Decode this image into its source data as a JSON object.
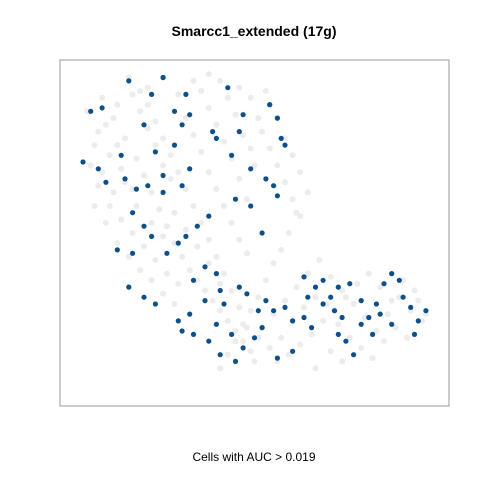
{
  "chart_data": {
    "type": "scatter",
    "title": "Smarcc1_extended (17g)",
    "xlabel": "Cells with AUC > 0.019",
    "ylabel": "",
    "xlim": [
      0,
      100
    ],
    "ylim": [
      0,
      100
    ],
    "axes_ticks": false,
    "grid": false,
    "legend": "none",
    "colors": {
      "highlight": "#0d4f8b",
      "background_points": "#ececec",
      "frame": "#9a9a9a"
    },
    "series": [
      {
        "role": "all-cells",
        "values": [
          [
            6,
            86
          ],
          [
            9,
            80
          ],
          [
            12,
            73
          ],
          [
            15,
            69
          ],
          [
            18,
            63
          ],
          [
            20,
            86
          ],
          [
            22,
            81
          ],
          [
            24,
            76
          ],
          [
            26,
            70
          ],
          [
            28,
            66
          ],
          [
            30,
            91
          ],
          [
            32,
            84
          ],
          [
            34,
            79
          ],
          [
            36,
            74
          ],
          [
            38,
            68
          ],
          [
            40,
            63
          ],
          [
            42,
            58
          ],
          [
            44,
            53
          ],
          [
            46,
            48
          ],
          [
            48,
            44
          ],
          [
            10,
            90
          ],
          [
            13,
            84
          ],
          [
            16,
            78
          ],
          [
            19,
            72
          ],
          [
            21,
            67
          ],
          [
            23,
            62
          ],
          [
            25,
            57
          ],
          [
            27,
            52
          ],
          [
            29,
            47
          ],
          [
            31,
            43
          ],
          [
            33,
            39
          ],
          [
            35,
            36
          ],
          [
            37,
            33
          ],
          [
            39,
            30
          ],
          [
            41,
            27
          ],
          [
            43,
            24
          ],
          [
            45,
            21
          ],
          [
            47,
            18
          ],
          [
            49,
            15
          ],
          [
            50,
            12
          ],
          [
            52,
            80
          ],
          [
            54,
            75
          ],
          [
            56,
            70
          ],
          [
            58,
            65
          ],
          [
            60,
            60
          ],
          [
            62,
            55
          ],
          [
            50,
            70
          ],
          [
            48,
            60
          ],
          [
            46,
            66
          ],
          [
            44,
            72
          ],
          [
            42,
            77
          ],
          [
            40,
            82
          ],
          [
            38,
            87
          ],
          [
            36,
            92
          ],
          [
            34,
            95
          ],
          [
            26,
            96
          ],
          [
            22,
            93
          ],
          [
            18,
            91
          ],
          [
            14,
            88
          ],
          [
            11,
            82
          ],
          [
            8,
            76
          ],
          [
            7,
            70
          ],
          [
            9,
            64
          ],
          [
            12,
            58
          ],
          [
            15,
            54
          ],
          [
            18,
            50
          ],
          [
            21,
            46
          ],
          [
            24,
            42
          ],
          [
            27,
            38
          ],
          [
            30,
            35
          ],
          [
            58,
            78
          ],
          [
            56,
            84
          ],
          [
            54,
            88
          ],
          [
            60,
            73
          ],
          [
            62,
            68
          ],
          [
            64,
            62
          ],
          [
            61,
            56
          ],
          [
            59,
            50
          ],
          [
            57,
            45
          ],
          [
            55,
            41
          ],
          [
            53,
            36
          ],
          [
            51,
            31
          ],
          [
            49,
            27
          ],
          [
            47,
            23
          ],
          [
            45,
            18
          ],
          [
            43,
            14
          ],
          [
            41,
            10
          ],
          [
            52,
            22
          ],
          [
            55,
            26
          ],
          [
            58,
            30
          ],
          [
            61,
            34
          ],
          [
            64,
            38
          ],
          [
            67,
            42
          ],
          [
            70,
            37
          ],
          [
            73,
            33
          ],
          [
            76,
            29
          ],
          [
            79,
            25
          ],
          [
            82,
            21
          ],
          [
            85,
            26
          ],
          [
            88,
            31
          ],
          [
            91,
            27
          ],
          [
            94,
            24
          ],
          [
            92,
            33
          ],
          [
            89,
            36
          ],
          [
            86,
            30
          ],
          [
            83,
            34
          ],
          [
            80,
            38
          ],
          [
            77,
            35
          ],
          [
            74,
            31
          ],
          [
            71,
            27
          ],
          [
            68,
            24
          ],
          [
            65,
            20
          ],
          [
            62,
            17
          ],
          [
            59,
            14
          ],
          [
            56,
            12
          ],
          [
            63,
            28
          ],
          [
            66,
            31
          ],
          [
            69,
            29
          ],
          [
            72,
            23
          ],
          [
            75,
            19
          ],
          [
            78,
            16
          ],
          [
            81,
            13
          ],
          [
            84,
            18
          ],
          [
            87,
            22
          ],
          [
            90,
            19
          ],
          [
            93,
            30
          ],
          [
            95,
            26
          ],
          [
            70,
            15
          ],
          [
            73,
            12
          ],
          [
            66,
            10
          ],
          [
            60,
            24
          ],
          [
            57,
            19
          ],
          [
            54,
            16
          ],
          [
            51,
            19
          ],
          [
            48,
            22
          ],
          [
            46,
            28
          ],
          [
            44,
            33
          ],
          [
            42,
            38
          ],
          [
            40,
            43
          ],
          [
            38,
            48
          ],
          [
            36,
            53
          ],
          [
            34,
            58
          ],
          [
            32,
            63
          ],
          [
            30,
            68
          ],
          [
            28,
            73
          ],
          [
            26,
            78
          ],
          [
            24,
            83
          ],
          [
            22,
            88
          ],
          [
            20,
            92
          ],
          [
            17,
            96
          ],
          [
            14,
            76
          ],
          [
            16,
            65
          ],
          [
            19,
            58
          ],
          [
            23,
            53
          ],
          [
            26,
            49
          ],
          [
            29,
            56
          ],
          [
            32,
            51
          ],
          [
            35,
            46
          ],
          [
            38,
            41
          ],
          [
            41,
            35
          ],
          [
            10,
            68
          ],
          [
            13,
            62
          ],
          [
            8,
            58
          ],
          [
            11,
            53
          ],
          [
            14,
            47
          ],
          [
            17,
            43
          ],
          [
            20,
            39
          ],
          [
            23,
            36
          ],
          [
            26,
            32
          ],
          [
            29,
            29
          ],
          [
            45,
            85
          ],
          [
            47,
            79
          ],
          [
            49,
            75
          ],
          [
            51,
            84
          ],
          [
            53,
            92
          ],
          [
            49,
            90
          ],
          [
            46,
            93
          ],
          [
            43,
            90
          ],
          [
            41,
            95
          ],
          [
            38,
            97
          ]
        ]
      },
      {
        "name": "Cells with AUC > 0.019",
        "values": [
          [
            17,
            95
          ],
          [
            23,
            91
          ],
          [
            26,
            96
          ],
          [
            10,
            87
          ],
          [
            7,
            86
          ],
          [
            21,
            82
          ],
          [
            29,
            86
          ],
          [
            31,
            82
          ],
          [
            33,
            85
          ],
          [
            39,
            80
          ],
          [
            43,
            93
          ],
          [
            47,
            85
          ],
          [
            54,
            88
          ],
          [
            56,
            84
          ],
          [
            57,
            78
          ],
          [
            58,
            76
          ],
          [
            46,
            80
          ],
          [
            44,
            73
          ],
          [
            49,
            69
          ],
          [
            53,
            66
          ],
          [
            55,
            64
          ],
          [
            56,
            61
          ],
          [
            5,
            71
          ],
          [
            9,
            69
          ],
          [
            15,
            73
          ],
          [
            16,
            66
          ],
          [
            19,
            63
          ],
          [
            24,
            74
          ],
          [
            26,
            62
          ],
          [
            26,
            67
          ],
          [
            31,
            64
          ],
          [
            33,
            69
          ],
          [
            29,
            76
          ],
          [
            32,
            91
          ],
          [
            40,
            78
          ],
          [
            45,
            60
          ],
          [
            49,
            58
          ],
          [
            52,
            50
          ],
          [
            38,
            55
          ],
          [
            35,
            52
          ],
          [
            30,
            47
          ],
          [
            32,
            49
          ],
          [
            27,
            44
          ],
          [
            23,
            49
          ],
          [
            21,
            52
          ],
          [
            18,
            44
          ],
          [
            14,
            45
          ],
          [
            18,
            56
          ],
          [
            22,
            64
          ],
          [
            11,
            65
          ],
          [
            17,
            34
          ],
          [
            21,
            31
          ],
          [
            24,
            29
          ],
          [
            30,
            24
          ],
          [
            31,
            21
          ],
          [
            34,
            20
          ],
          [
            38,
            18
          ],
          [
            40,
            23
          ],
          [
            41,
            14
          ],
          [
            45,
            12
          ],
          [
            40,
            38
          ],
          [
            37,
            40
          ],
          [
            46,
            34
          ],
          [
            48,
            32
          ],
          [
            51,
            27
          ],
          [
            53,
            30
          ],
          [
            55,
            27
          ],
          [
            58,
            28
          ],
          [
            60,
            24
          ],
          [
            63,
            25
          ],
          [
            64,
            31
          ],
          [
            66,
            34
          ],
          [
            68,
            36
          ],
          [
            70,
            31
          ],
          [
            71,
            27
          ],
          [
            73,
            25
          ],
          [
            72,
            20
          ],
          [
            74,
            18
          ],
          [
            76,
            14
          ],
          [
            78,
            23
          ],
          [
            80,
            25
          ],
          [
            82,
            29
          ],
          [
            84,
            35
          ],
          [
            86,
            38
          ],
          [
            88,
            36
          ],
          [
            89,
            31
          ],
          [
            91,
            28
          ],
          [
            93,
            24
          ],
          [
            95,
            27
          ],
          [
            92,
            20
          ],
          [
            86,
            23
          ],
          [
            83,
            26
          ],
          [
            81,
            20
          ],
          [
            78,
            30
          ],
          [
            72,
            34
          ],
          [
            68,
            29
          ],
          [
            65,
            22
          ],
          [
            60,
            15
          ],
          [
            56,
            13
          ],
          [
            52,
            22
          ],
          [
            50,
            19
          ],
          [
            47,
            16
          ],
          [
            44,
            20
          ],
          [
            42,
            29
          ],
          [
            41,
            33
          ],
          [
            37,
            30
          ],
          [
            34,
            36
          ],
          [
            33,
            26
          ],
          [
            63,
            37
          ],
          [
            75,
            35
          ]
        ]
      }
    ]
  }
}
